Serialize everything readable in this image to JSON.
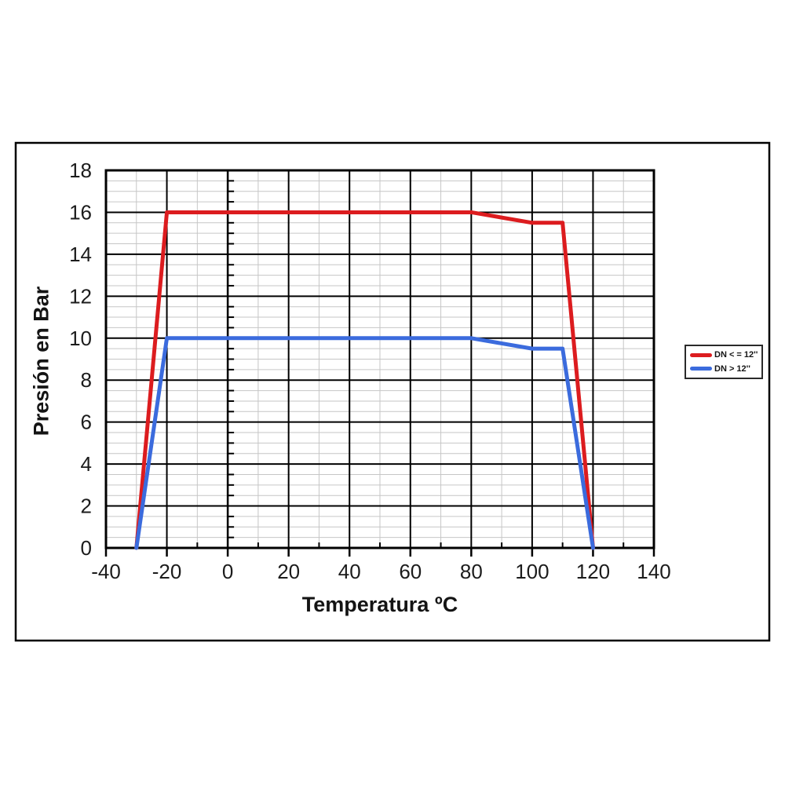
{
  "chart_data": {
    "type": "line",
    "title": "",
    "xlabel": "Temperatura ºC",
    "ylabel": "Presión en Bar",
    "grid": "on",
    "x_axis": {
      "min": -40,
      "max": 140,
      "major_step": 20,
      "minor_step": 10,
      "tick_labels": [
        "-40",
        "-20",
        "0",
        "20",
        "40",
        "60",
        "80",
        "100",
        "120",
        "140"
      ]
    },
    "y_axis": {
      "min": 0,
      "max": 18,
      "major_step": 2,
      "minor_step": 0.5,
      "tick_labels": [
        "0",
        "2",
        "4",
        "6",
        "8",
        "10",
        "12",
        "14",
        "16",
        "18"
      ]
    },
    "series": [
      {
        "name": "DN < = 12''",
        "color": "#dc1c1f",
        "points": [
          [
            -30,
            0
          ],
          [
            -20,
            16
          ],
          [
            80,
            16
          ],
          [
            100,
            15.5
          ],
          [
            110,
            15.5
          ],
          [
            120,
            0
          ]
        ]
      },
      {
        "name": "DN > 12''",
        "color": "#3b6bdd",
        "points": [
          [
            -30,
            0
          ],
          [
            -20,
            10
          ],
          [
            80,
            10
          ],
          [
            100,
            9.5
          ],
          [
            110,
            9.5
          ],
          [
            120,
            0
          ]
        ]
      }
    ],
    "legend": {
      "position": "right",
      "background": "#ffffff",
      "border_color": "#2a2a2a"
    },
    "colors": {
      "frame": "#000000",
      "grid_major": "#000000",
      "grid_minor": "#c6c6c6",
      "text": "#1c1c1c"
    }
  }
}
